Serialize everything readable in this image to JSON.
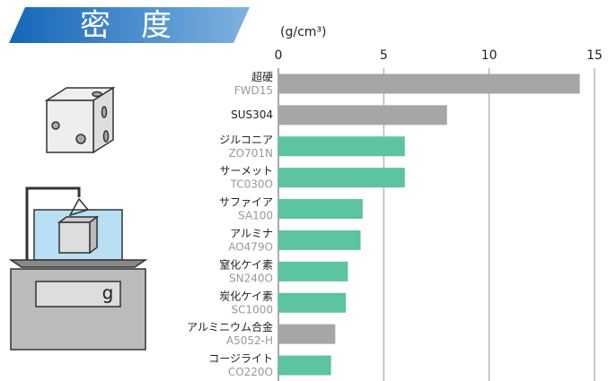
{
  "chart_data": {
    "type": "bar",
    "orientation": "horizontal",
    "title": "密　度",
    "axis_label": "(g/cm³)",
    "categories": [
      "超硬",
      "SUS304",
      "ジルコニア",
      "サーメット",
      "サファイア",
      "アルミナ",
      "窒化ケイ素",
      "炭化ケイ素",
      "アルミニウム合金",
      "コージライト"
    ],
    "codes": [
      "FWD15",
      null,
      "ZO701N",
      "TC030O",
      "SA100",
      "AO479O",
      "SN240O",
      "SC1000",
      "A5052-H",
      "CO220O"
    ],
    "values": [
      14.3,
      8.0,
      6.0,
      6.0,
      4.0,
      3.9,
      3.3,
      3.2,
      2.7,
      2.5
    ],
    "colors": [
      "#a6a6a6",
      "#a6a6a6",
      "#5cc49e",
      "#5cc49e",
      "#5cc49e",
      "#5cc49e",
      "#5cc49e",
      "#5cc49e",
      "#a6a6a6",
      "#5cc49e"
    ],
    "xlim": [
      0,
      15
    ],
    "xticks": [
      0,
      5,
      10,
      15
    ],
    "grid": true,
    "scale_unit": "g"
  }
}
